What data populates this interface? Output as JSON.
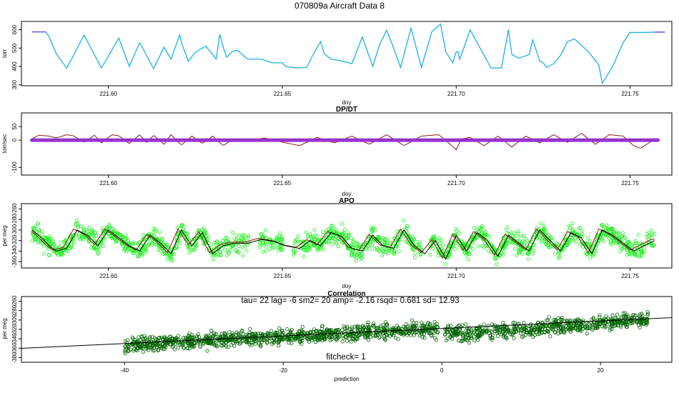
{
  "figure_title": "070809a   Aircraft Data 8",
  "chart_data": [
    {
      "id": "pressure",
      "type": "line",
      "title": "",
      "xlabel": "doy",
      "ylabel": "torr",
      "xlim": [
        221.575,
        221.762
      ],
      "ylim": [
        295,
        645
      ],
      "xticks": [
        221.6,
        221.65,
        221.7,
        221.75
      ],
      "xtick_labels": [
        "221.60",
        "221.65",
        "221.70",
        "221.75"
      ],
      "yticks": [
        300,
        400,
        500,
        600
      ],
      "ytick_labels": [
        "300",
        "400",
        "500",
        "600"
      ],
      "grid": false,
      "colors": {
        "line": "#1ab2e0",
        "flat_ends": "#7a40e0"
      },
      "series": [
        {
          "x": [
            221.578,
            221.582,
            221.583,
            221.585,
            221.588,
            221.593,
            221.598,
            221.603,
            221.606,
            221.609,
            221.613,
            221.616,
            221.618,
            221.6205,
            221.621,
            221.623,
            221.625,
            221.628,
            221.631,
            221.632,
            221.633,
            221.634,
            221.6355,
            221.637,
            221.64,
            221.644,
            221.647,
            221.65,
            221.651,
            221.654,
            221.657,
            221.659,
            221.661,
            221.662,
            221.664,
            221.667,
            221.67,
            221.673,
            221.676,
            221.678,
            221.68,
            221.682,
            221.684,
            221.687,
            221.69,
            221.693,
            221.6955,
            221.697,
            221.699,
            221.7,
            221.7005,
            221.701,
            221.702,
            221.704,
            221.706,
            221.71,
            221.713,
            221.715,
            221.716,
            221.718,
            221.721,
            221.722,
            221.724,
            221.725,
            221.726,
            221.728,
            221.73,
            221.732,
            221.734,
            221.738,
            221.741,
            221.742,
            221.745,
            221.748,
            221.75,
            221.754,
            221.757,
            221.76
          ],
          "y": [
            588,
            588,
            560,
            470,
            390,
            570,
            392,
            555,
            400,
            530,
            388,
            505,
            440,
            572,
            530,
            428,
            478,
            510,
            440,
            575,
            505,
            450,
            480,
            490,
            440,
            440,
            420,
            420,
            400,
            392,
            395,
            470,
            535,
            470,
            440,
            430,
            415,
            560,
            400,
            520,
            598,
            500,
            395,
            608,
            395,
            590,
            630,
            480,
            420,
            480,
            480,
            440,
            490,
            600,
            530,
            392,
            392,
            600,
            465,
            445,
            465,
            545,
            430,
            420,
            395,
            415,
            460,
            535,
            550,
            480,
            408,
            308,
            400,
            530,
            585,
            585,
            587,
            587
          ]
        }
      ]
    },
    {
      "id": "dpdt",
      "type": "line",
      "title": "DP/DT",
      "xlabel": "doy",
      "ylabel": "torr/sec",
      "xlim": [
        221.575,
        221.762
      ],
      "ylim": [
        -128,
        100
      ],
      "xticks": [
        221.6,
        221.65,
        221.7,
        221.75
      ],
      "xtick_labels": [
        "221.60",
        "221.65",
        "221.70",
        "221.75"
      ],
      "yticks": [
        -100,
        0,
        50
      ],
      "ytick_labels": [
        "-100",
        "0",
        "50"
      ],
      "grid": false,
      "colors": {
        "line": "#8b1a1a",
        "thick": "#9932cc"
      },
      "series": [
        {
          "name": "",
          "x": [
            221.578,
            221.58,
            221.583,
            221.585,
            221.588,
            221.59,
            221.593,
            221.596,
            221.598,
            221.601,
            221.603,
            221.606,
            221.609,
            221.611,
            221.613,
            221.616,
            221.618,
            221.621,
            221.624,
            221.627,
            221.63,
            221.633,
            221.636,
            221.64,
            221.645,
            221.651,
            221.655,
            221.66,
            221.665,
            221.67,
            221.675,
            221.68,
            221.685,
            221.69,
            221.695,
            221.698,
            221.7,
            221.7015,
            221.704,
            221.708,
            221.712,
            221.716,
            221.72,
            221.724,
            221.728,
            221.732,
            221.736,
            221.74,
            221.744,
            221.748,
            221.751,
            221.753,
            221.756,
            221.758
          ],
          "y": [
            5,
            18,
            15,
            8,
            20,
            16,
            -8,
            18,
            -10,
            20,
            16,
            -12,
            20,
            -10,
            18,
            -15,
            20,
            -18,
            15,
            -12,
            15,
            -20,
            5,
            0,
            8,
            -10,
            -20,
            10,
            -10,
            15,
            -15,
            20,
            -20,
            15,
            20,
            -12,
            -35,
            5,
            10,
            -20,
            15,
            -25,
            15,
            -10,
            20,
            -8,
            25,
            -15,
            20,
            15,
            -20,
            -30,
            -5,
            2
          ]
        }
      ]
    },
    {
      "id": "apo",
      "type": "scatter",
      "title": "APO",
      "xlabel": "doy",
      "ylabel": "per meg",
      "xlim": [
        221.575,
        221.762
      ],
      "ylim": [
        -372,
        -250
      ],
      "xticks": [
        221.6,
        221.65,
        221.7,
        221.75
      ],
      "xtick_labels": [
        "221.60",
        "221.65",
        "221.70",
        "221.75"
      ],
      "yticks": [
        -360,
        -340,
        -320,
        -300,
        -280,
        -260
      ],
      "ytick_labels": [
        "-360",
        "-340",
        "-320",
        "-300",
        "-280",
        "-260"
      ],
      "grid": false,
      "colors": {
        "points": "#22ee22",
        "smooth": "#000000",
        "model": "#8b1a1a"
      },
      "series": [
        {
          "name": "",
          "x": [
            221.578,
            221.58,
            221.583,
            221.585,
            221.588,
            221.591,
            221.594,
            221.597,
            221.6,
            221.603,
            221.606,
            221.609,
            221.612,
            221.615,
            221.618,
            221.621,
            221.624,
            221.627,
            221.63,
            221.633,
            221.636,
            221.64,
            221.644,
            221.648,
            221.651,
            221.655,
            221.658,
            221.661,
            221.664,
            221.667,
            221.67,
            221.673,
            221.676,
            221.679,
            221.682,
            221.685,
            221.688,
            221.691,
            221.694,
            221.697,
            221.7,
            221.703,
            221.706,
            221.709,
            221.712,
            221.715,
            221.718,
            221.721,
            221.724,
            221.727,
            221.73,
            221.733,
            221.736,
            221.739,
            221.742,
            221.745,
            221.748,
            221.751,
            221.754,
            221.757
          ],
          "y": [
            -300,
            -310,
            -330,
            -340,
            -335,
            -300,
            -310,
            -330,
            -300,
            -315,
            -330,
            -340,
            -310,
            -325,
            -345,
            -300,
            -330,
            -305,
            -345,
            -330,
            -325,
            -325,
            -318,
            -322,
            -330,
            -335,
            -320,
            -330,
            -305,
            -312,
            -335,
            -340,
            -310,
            -330,
            -335,
            -300,
            -330,
            -345,
            -320,
            -355,
            -310,
            -340,
            -305,
            -320,
            -350,
            -310,
            -325,
            -340,
            -300,
            -320,
            -340,
            -305,
            -315,
            -345,
            -300,
            -310,
            -325,
            -340,
            -330,
            -320
          ]
        }
      ]
    },
    {
      "id": "correlation",
      "type": "scatter",
      "title": "Correlation",
      "xlabel": "prediction",
      "ylabel": "per meg",
      "xlim": [
        -53,
        29
      ],
      "ylim": [
        -390,
        -250
      ],
      "xticks": [
        -40,
        -20,
        0,
        20
      ],
      "xtick_labels": [
        "-40",
        "-20",
        "0",
        "20"
      ],
      "yticks": [
        -380,
        -360,
        -340,
        -320,
        -300,
        -280,
        -260
      ],
      "ytick_labels": [
        "-380",
        "-360",
        "-340",
        "-320",
        "-300",
        "-280",
        "-260"
      ],
      "grid": false,
      "colors": {
        "points": "#006400",
        "fit": "#000000"
      },
      "annotation_top": "tau= 22 lag= -6 sm2= 20 amp= -2.16 rsqd= 0.681 sd= 12.93",
      "annotation_bottom": "fitcheck= 1",
      "fit_line": {
        "slope": 0.8,
        "intercept": -318
      },
      "series": [
        {
          "name": "",
          "x": [
            -40,
            -38,
            -36,
            -34,
            -32,
            -30,
            -28,
            -26,
            -24,
            -22,
            -20,
            -18,
            -16,
            -14,
            -12,
            -10,
            -8,
            -6,
            -4,
            -2,
            -1,
            0.5,
            2,
            4,
            6,
            8,
            10,
            12,
            14,
            16,
            18,
            20,
            22,
            24,
            26
          ],
          "y": [
            -355,
            -352,
            -350,
            -348,
            -346,
            -344,
            -342,
            -340,
            -338,
            -336,
            -334,
            -333,
            -331,
            -329,
            -328,
            -326,
            -324,
            -323,
            -321,
            -320,
            -319,
            -330,
            -328,
            -326,
            -325,
            -322,
            -320,
            -318,
            -314,
            -312,
            -310,
            -306,
            -304,
            -302,
            -300
          ]
        }
      ]
    }
  ]
}
